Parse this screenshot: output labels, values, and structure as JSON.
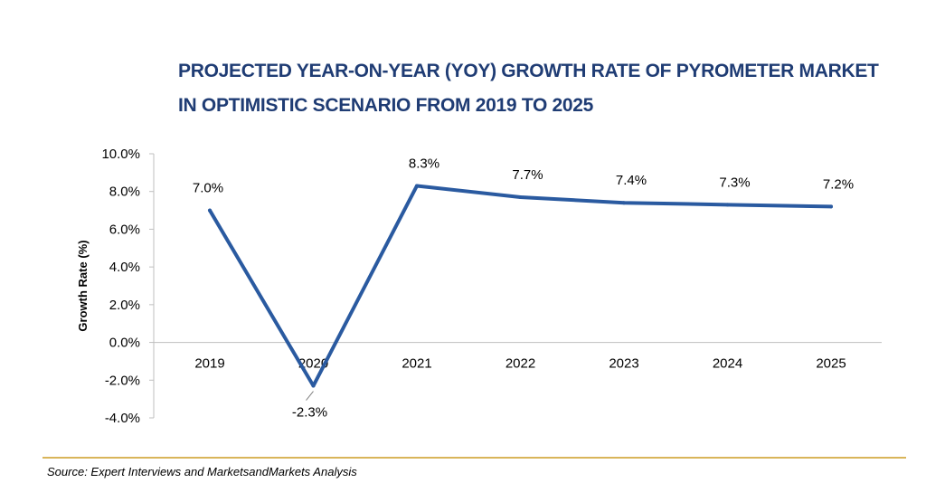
{
  "title": "PROJECTED YEAR-ON-YEAR (YOY) GROWTH RATE OF PYROMETER MARKET IN OPTIMISTIC SCENARIO FROM 2019 TO 2025",
  "source": "Source: Expert Interviews and MarketsandMarkets Analysis",
  "colors": {
    "line": "#2a5aa0",
    "title": "#1f3c74",
    "divider": "#d9b55a",
    "axis": "#bfbfbf"
  },
  "chart_data": {
    "type": "line",
    "title": "PROJECTED YEAR-ON-YEAR (YOY) GROWTH RATE OF PYROMETER MARKET IN OPTIMISTIC SCENARIO FROM 2019 TO 2025",
    "xlabel": "",
    "ylabel": "Growth Rate (%)",
    "categories": [
      "2019",
      "2020",
      "2021",
      "2022",
      "2023",
      "2024",
      "2025"
    ],
    "values": [
      7.0,
      -2.3,
      8.3,
      7.7,
      7.4,
      7.3,
      7.2
    ],
    "data_labels": [
      "7.0%",
      "-2.3%",
      "8.3%",
      "7.7%",
      "7.4%",
      "7.3%",
      "7.2%"
    ],
    "ylim": [
      -4.0,
      10.0
    ],
    "yticks": [
      -4.0,
      -2.0,
      0.0,
      2.0,
      4.0,
      6.0,
      8.0,
      10.0
    ],
    "ytick_labels": [
      "-4.0%",
      "-2.0%",
      "0.0%",
      "2.0%",
      "4.0%",
      "6.0%",
      "8.0%",
      "10.0%"
    ],
    "grid": false,
    "legend": "none"
  }
}
